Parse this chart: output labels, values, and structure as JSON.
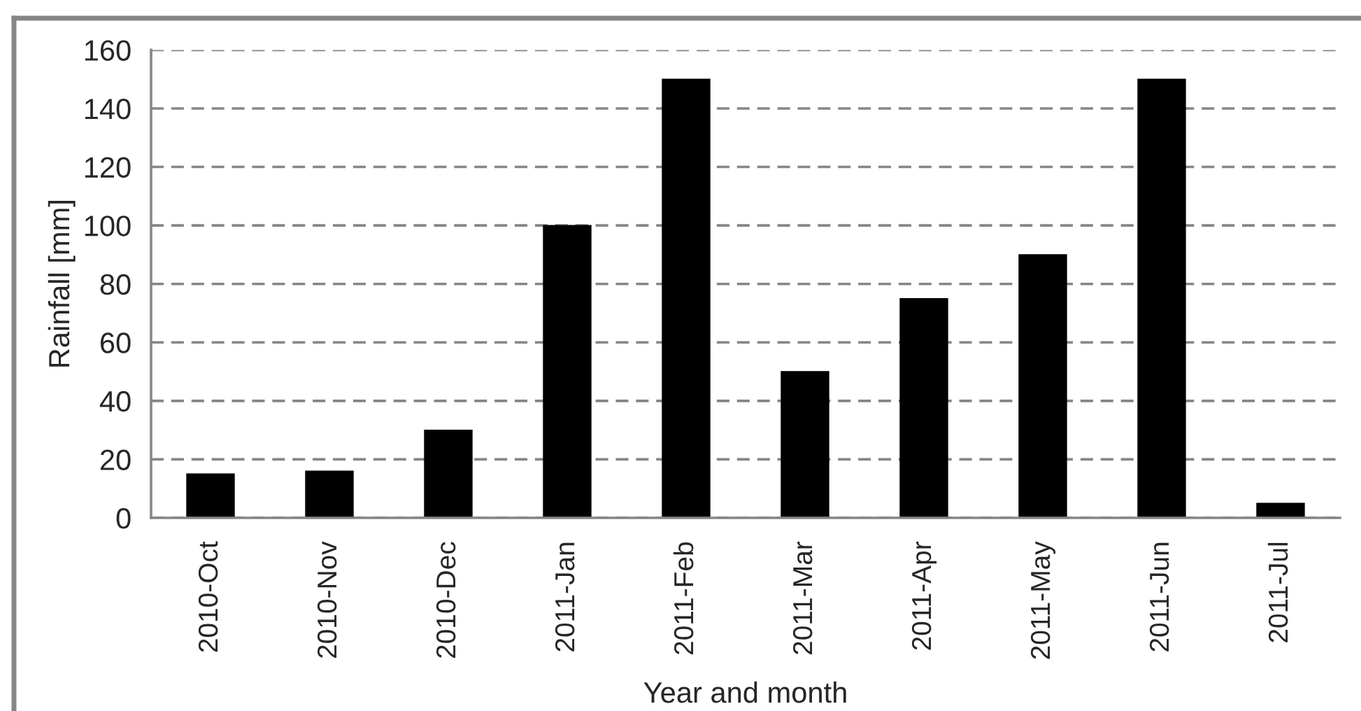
{
  "chart_data": {
    "type": "bar",
    "xlabel": "Year and month",
    "ylabel": "Rainfall [mm]",
    "categories": [
      "2010-Oct",
      "2010-Nov",
      "2010-Dec",
      "2011-Jan",
      "2011-Feb",
      "2011-Mar",
      "2011-Apr",
      "2011-May",
      "2011-Jun",
      "2011-Jul"
    ],
    "values": [
      15,
      16,
      30,
      100,
      150,
      50,
      75,
      90,
      150,
      5
    ],
    "color": "#000000",
    "ylim": [
      0,
      160
    ],
    "yticks": [
      0,
      20,
      40,
      60,
      80,
      100,
      120,
      140,
      160
    ],
    "grid": "y"
  }
}
